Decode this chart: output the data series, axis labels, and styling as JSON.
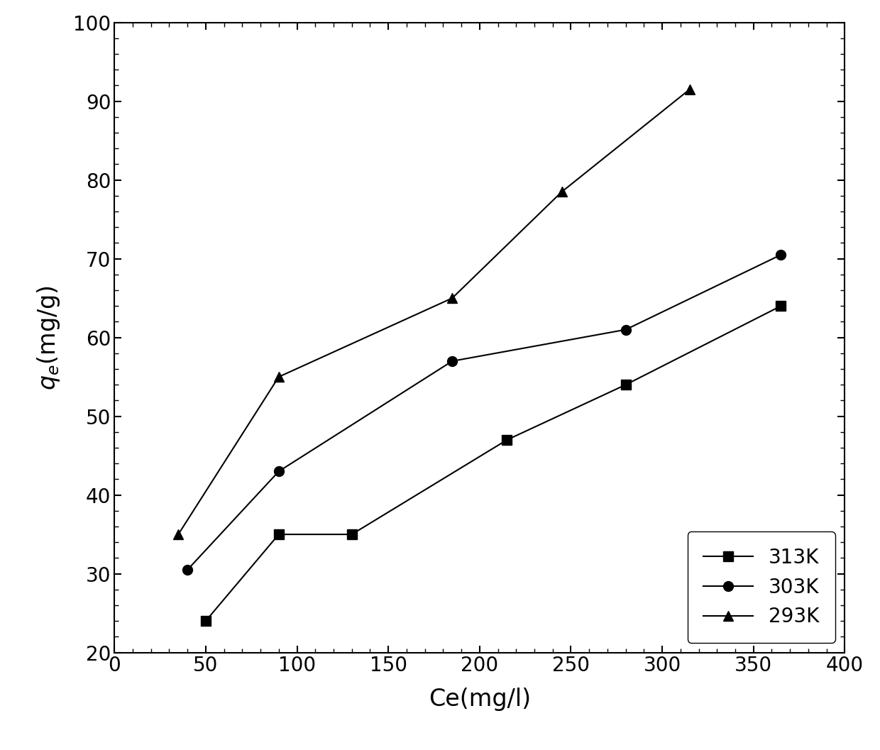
{
  "series": [
    {
      "label": "313K",
      "x": [
        50,
        90,
        130,
        215,
        280,
        365
      ],
      "y": [
        24,
        35,
        35,
        47,
        54,
        64
      ],
      "marker": "s",
      "color": "#000000"
    },
    {
      "label": "303K",
      "x": [
        40,
        90,
        185,
        280,
        365
      ],
      "y": [
        30.5,
        43,
        57,
        61,
        70.5
      ],
      "marker": "o",
      "color": "#000000"
    },
    {
      "label": "293K",
      "x": [
        35,
        90,
        185,
        245,
        315
      ],
      "y": [
        35,
        55,
        65,
        78.5,
        91.5
      ],
      "marker": "^",
      "color": "#000000"
    }
  ],
  "xlabel": "Ce(mg/l)",
  "ylabel": "$q_e$(mg/g)",
  "xlim": [
    0,
    400
  ],
  "ylim": [
    20,
    100
  ],
  "xticks": [
    0,
    50,
    100,
    150,
    200,
    250,
    300,
    350,
    400
  ],
  "yticks": [
    20,
    30,
    40,
    50,
    60,
    70,
    80,
    90,
    100
  ],
  "legend_loc": "lower right",
  "background_color": "#ffffff",
  "linewidth": 1.5,
  "markersize": 10,
  "tick_fontsize": 20,
  "label_fontsize": 24
}
